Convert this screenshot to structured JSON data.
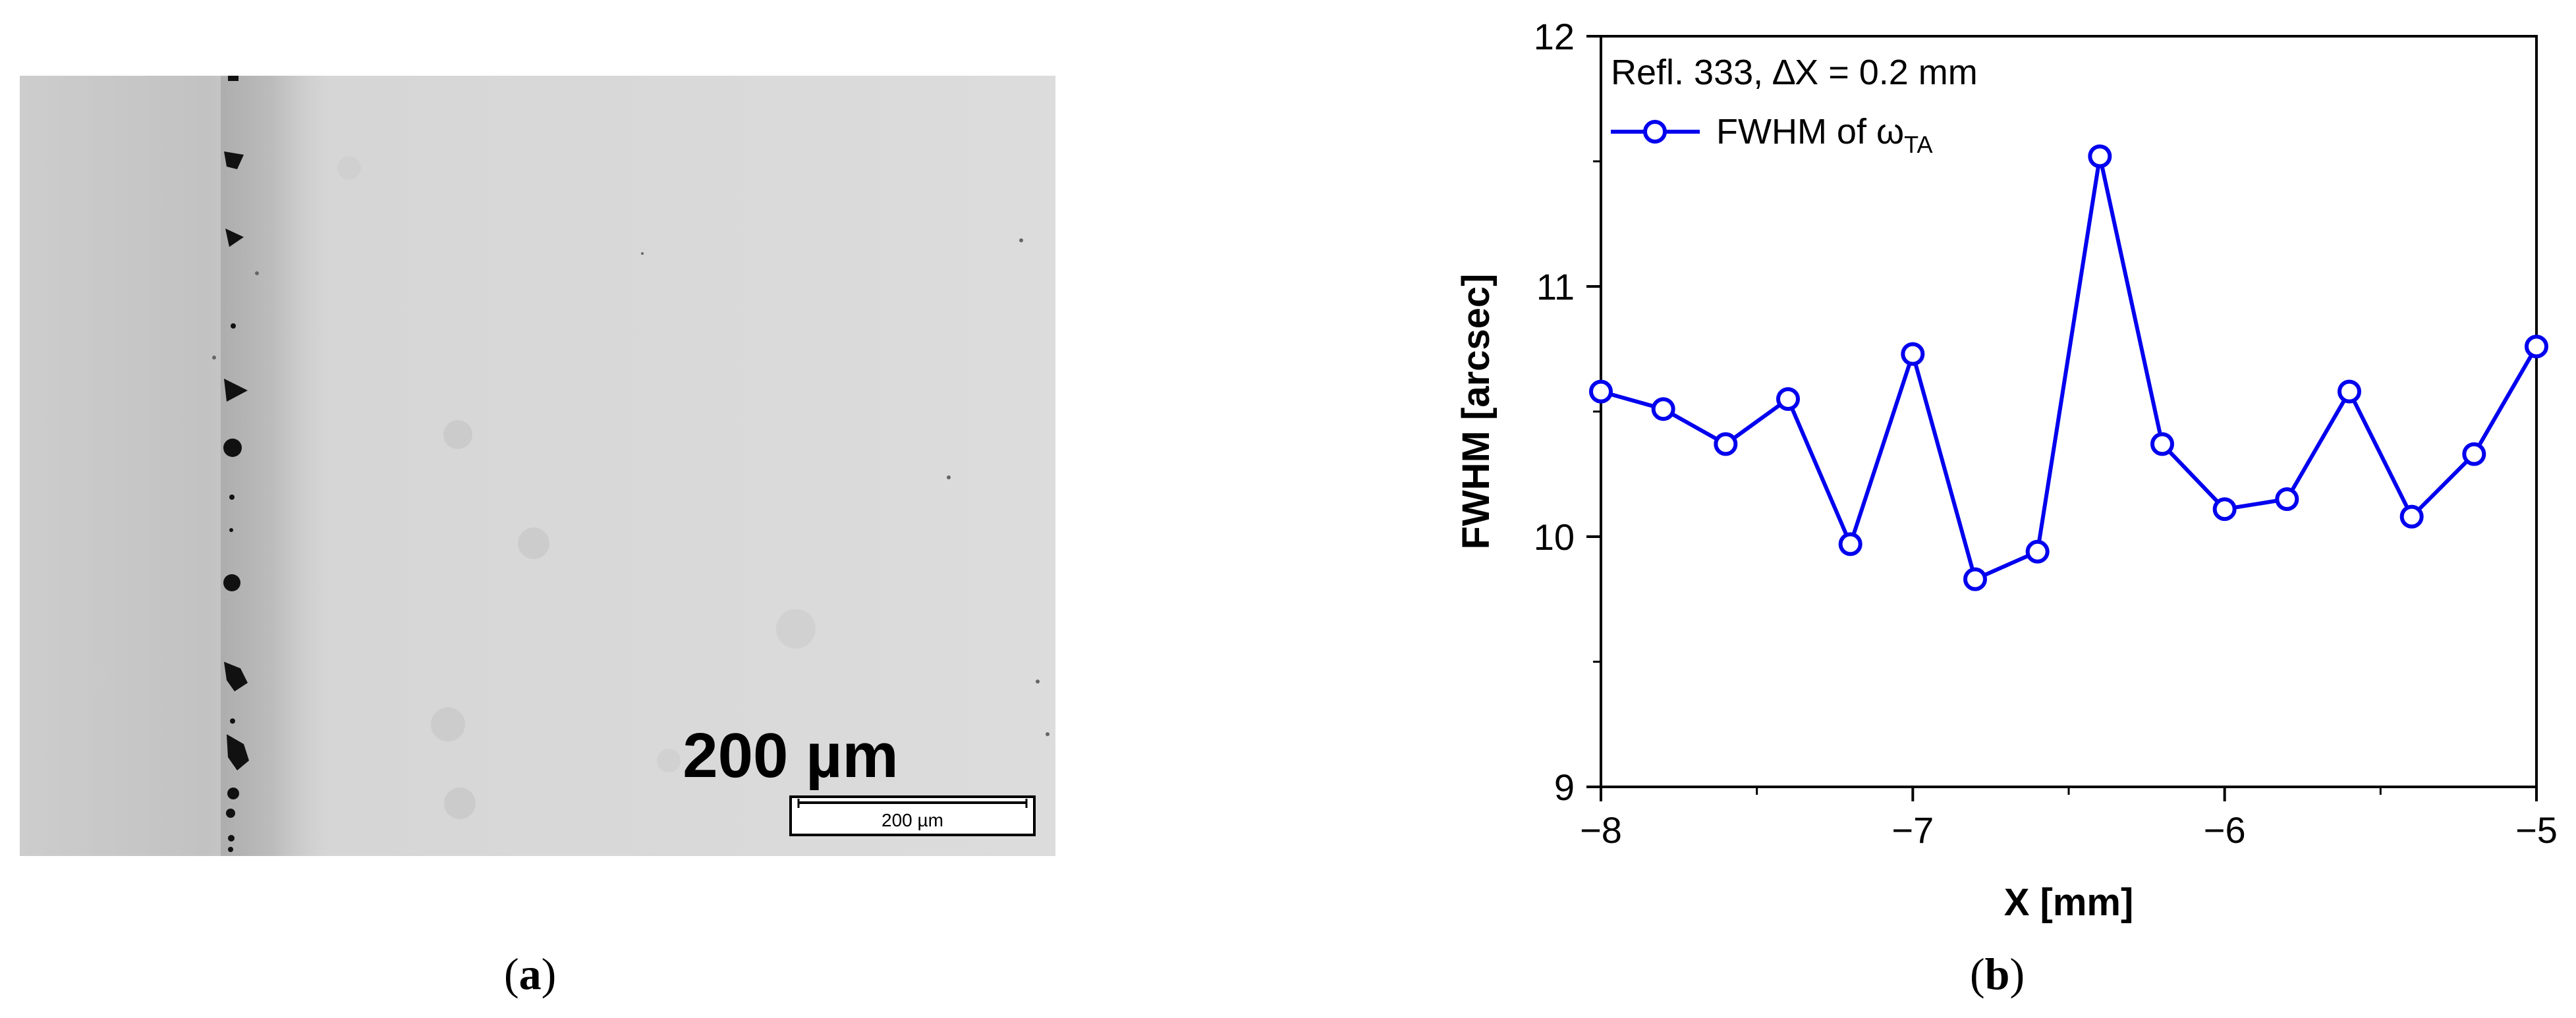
{
  "panel_a": {
    "label_open": "(",
    "label_letter": "a",
    "label_close": ")",
    "scale_bar_big_label": "200 µm",
    "scale_bar_small_label": "200 µm"
  },
  "panel_b": {
    "label_open": "(",
    "label_letter": "b",
    "label_close": ")"
  },
  "chart_data": {
    "type": "line",
    "title": "",
    "annotation": "Refl. 333, ∆X = 0.2 mm",
    "xlabel": "X  [mm]",
    "ylabel": "FWHM  [arcsec]",
    "xlim": [
      -8,
      -5
    ],
    "ylim": [
      9,
      12
    ],
    "x_ticks": [
      -8,
      -7,
      -6,
      -5
    ],
    "x_tick_labels": [
      "−8",
      "−7",
      "−6",
      "−5"
    ],
    "y_ticks": [
      9,
      10,
      11,
      12
    ],
    "y_tick_labels": [
      "9",
      "10",
      "11",
      "12"
    ],
    "grid": false,
    "legend_position": "top-left",
    "legend": {
      "prefix": "FWHM of ω",
      "subscript": "TA"
    },
    "series": [
      {
        "name": "FWHM of ωTA",
        "color": "#0000ee",
        "marker": "open-circle",
        "x": [
          -8.0,
          -7.8,
          -7.6,
          -7.4,
          -7.2,
          -7.0,
          -6.8,
          -6.6,
          -6.4,
          -6.2,
          -6.0,
          -5.8,
          -5.6,
          -5.4,
          -5.2,
          -5.0
        ],
        "y": [
          10.58,
          10.51,
          10.37,
          10.55,
          9.97,
          10.73,
          9.83,
          9.94,
          11.52,
          10.37,
          10.11,
          10.15,
          10.58,
          10.08,
          10.33,
          10.76
        ]
      }
    ]
  }
}
